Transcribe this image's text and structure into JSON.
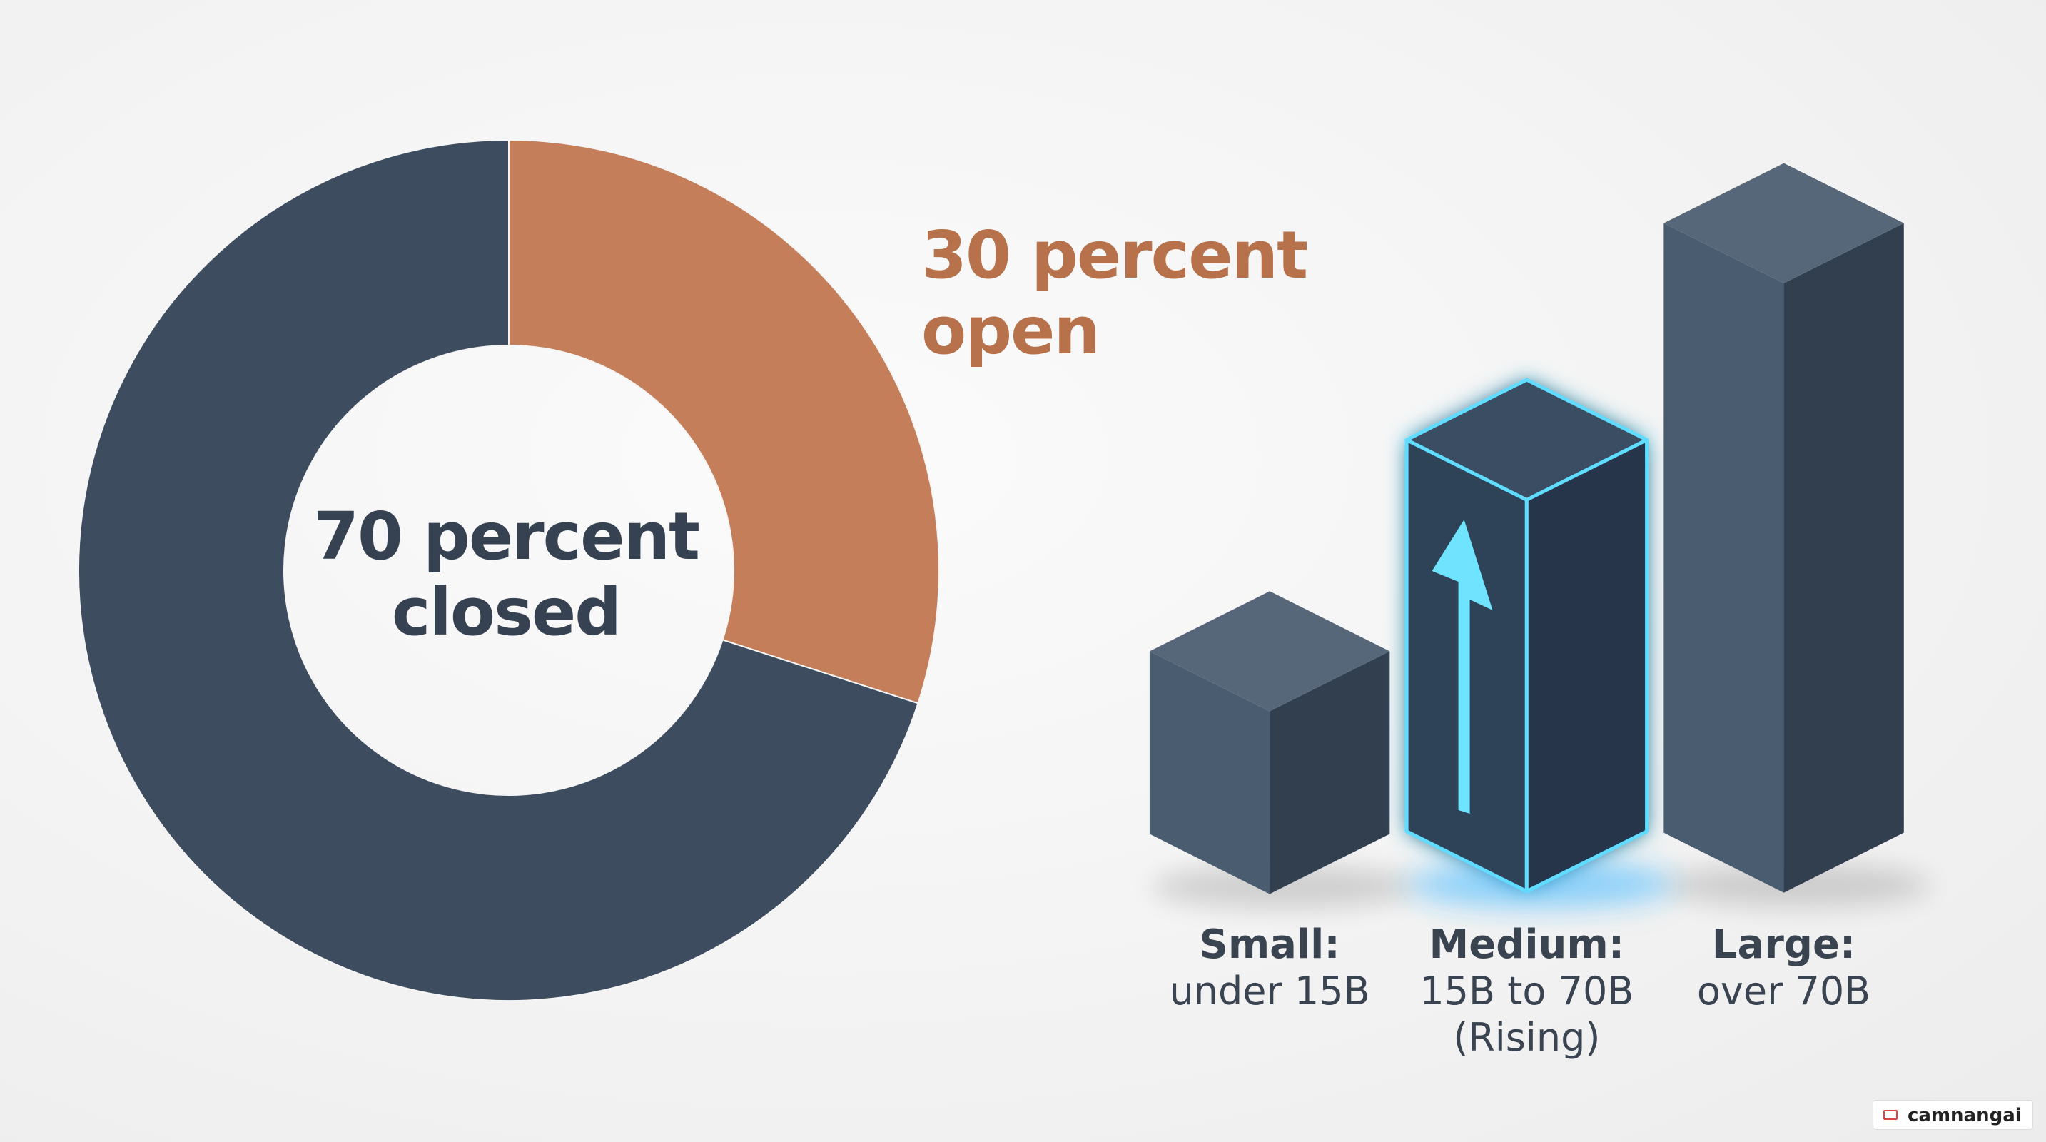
{
  "chart_data": {
    "type": "pie",
    "donut": true,
    "values": [
      70,
      30
    ],
    "value_labels": [
      "70 percent closed",
      "30 percent open"
    ],
    "colors": [
      "#3d4d5f",
      "#c47f5a"
    ]
  },
  "size_tiers": [
    {
      "name": "Small:",
      "range": "under 15B"
    },
    {
      "name": "Medium:",
      "range": "15B to 70B (Rising)"
    },
    {
      "name": "Large:",
      "range": "over 70B"
    }
  ],
  "watermark": "camnangai"
}
